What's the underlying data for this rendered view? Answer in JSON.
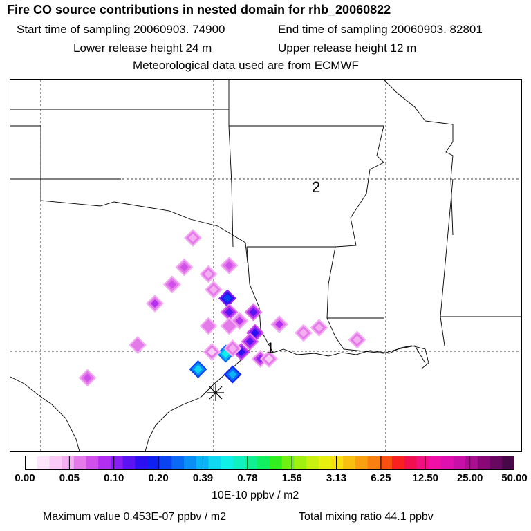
{
  "header": {
    "title": "Fire CO source contributions in nested domain for rhb_20060822",
    "start": "Start time of sampling 20060903. 74900",
    "end": "End time of sampling 20060903. 82801",
    "lower": "Lower release height   24 m",
    "upper": "Upper release height   12 m",
    "met": "Meteorological data used are from ECMWF"
  },
  "map": {
    "labels": {
      "site1": "1",
      "site2": "2"
    },
    "sources": [
      {
        "lon": -96.2,
        "lat": 36.6,
        "level": 3
      },
      {
        "lon": -94.1,
        "lat": 35.0,
        "level": 5
      },
      {
        "lon": -96.7,
        "lat": 34.9,
        "level": 5
      },
      {
        "lon": -95.3,
        "lat": 34.5,
        "level": 3
      },
      {
        "lon": -94.2,
        "lat": 33.1,
        "level": 11
      },
      {
        "lon": -94.1,
        "lat": 32.3,
        "level": 8
      },
      {
        "lon": -92.7,
        "lat": 32.3,
        "level": 8
      },
      {
        "lon": -93.5,
        "lat": 31.8,
        "level": 6
      },
      {
        "lon": -92.6,
        "lat": 31.1,
        "level": 9
      },
      {
        "lon": -93.4,
        "lat": 30.0,
        "level": 9
      },
      {
        "lon": -91.2,
        "lat": 31.6,
        "level": 6
      },
      {
        "lon": -94.1,
        "lat": 31.5,
        "level": 4
      },
      {
        "lon": -94.3,
        "lat": 29.9,
        "level": 16
      },
      {
        "lon": -95.1,
        "lat": 30.0,
        "level": 2
      },
      {
        "lon": -93.9,
        "lat": 30.2,
        "level": 3
      },
      {
        "lon": -99.4,
        "lat": 30.4,
        "level": 4
      },
      {
        "lon": -102.3,
        "lat": 28.5,
        "level": 5
      },
      {
        "lon": -98.4,
        "lat": 32.8,
        "level": 6
      },
      {
        "lon": -97.4,
        "lat": 33.9,
        "level": 5
      },
      {
        "lon": -95.0,
        "lat": 33.6,
        "level": 3
      },
      {
        "lon": -92.3,
        "lat": 29.6,
        "level": 7
      },
      {
        "lon": -95.3,
        "lat": 31.5,
        "level": 4
      },
      {
        "lon": -89.8,
        "lat": 31.1,
        "level": 3
      },
      {
        "lon": -88.9,
        "lat": 31.4,
        "level": 3
      },
      {
        "lon": -86.7,
        "lat": 30.7,
        "level": 3
      },
      {
        "lon": -95.9,
        "lat": 29.0,
        "level": 15
      },
      {
        "lon": -93.9,
        "lat": 28.7,
        "level": 14
      },
      {
        "lon": -92.9,
        "lat": 30.6,
        "level": 8
      },
      {
        "lon": -91.8,
        "lat": 29.6,
        "level": 2
      }
    ]
  },
  "colorbar": {
    "colors": [
      "#ffffff",
      "#fde6fc",
      "#f9ccf8",
      "#f3aff1",
      "#e47ae9",
      "#d150ea",
      "#b22ef0",
      "#8a1ff3",
      "#5a14f2",
      "#2c10f0",
      "#1020f0",
      "#0a44f0",
      "#0a6af5",
      "#0a90f5",
      "#0ab4f5",
      "#10d8f0",
      "#10f0e8",
      "#10f0c0",
      "#10f090",
      "#10f060",
      "#30f020",
      "#70f010",
      "#a0f010",
      "#c8f010",
      "#e8f010",
      "#f8e010",
      "#f8c010",
      "#f8a010",
      "#f88010",
      "#f85010",
      "#f82020",
      "#f01050",
      "#f01080",
      "#f010a8",
      "#e010b0",
      "#c810a8",
      "#a81090",
      "#880878",
      "#680860",
      "#480848"
    ],
    "ticks": [
      "0.00",
      "0.05",
      "0.10",
      "0.20",
      "0.39",
      "0.78",
      "1.56",
      "3.13",
      "6.25",
      "12.50",
      "25.00",
      "50.00"
    ],
    "units": "10E-10 ppbv / m2"
  },
  "footer": {
    "max": "Maximum value  0.453E-07 ppbv / m2",
    "total": "Total mixing ratio       44.1 ppbv"
  }
}
